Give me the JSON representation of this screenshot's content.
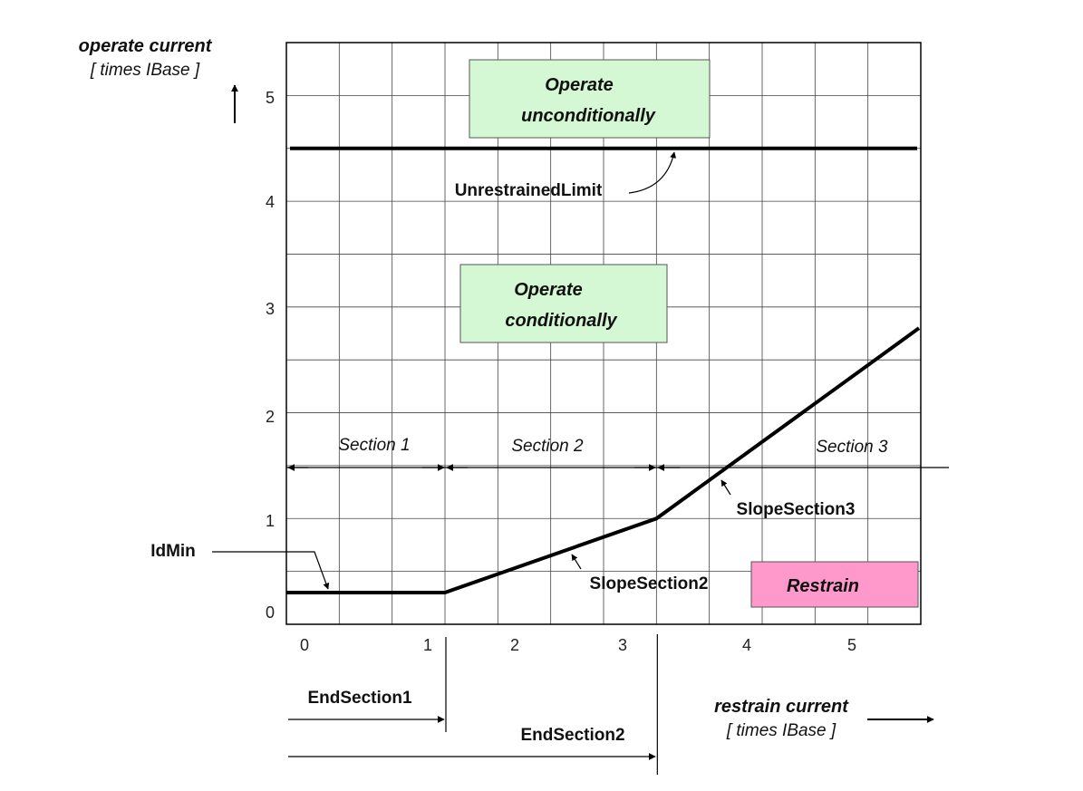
{
  "chart_data": {
    "type": "line",
    "ylabel": "operate current",
    "ylabel_unit": "[ times IBase ]",
    "xlabel": "restrain current",
    "xlabel_unit": "[ times IBase ]",
    "xlim": [
      0,
      6
    ],
    "ylim": [
      0,
      5.5
    ],
    "x_ticks": [
      "0",
      "1",
      "2",
      "3",
      "4",
      "5"
    ],
    "y_ticks": [
      "0",
      "1",
      "2",
      "3",
      "4",
      "5"
    ],
    "grid": true,
    "characteristic": {
      "x": [
        0,
        1.5,
        3.5,
        6
      ],
      "y": [
        0.3,
        0.3,
        1.0,
        2.8
      ]
    },
    "unrestrained_limit": 4.5,
    "end_section1": 1.5,
    "end_section2": 3.5,
    "sections": [
      "Section 1",
      "Section 2",
      "Section 3"
    ],
    "annotations": {
      "unrestrained": "UnrestrainedLimit",
      "idmin": "IdMin",
      "slope2": "SlopeSection2",
      "slope3": "SlopeSection3",
      "end1": "EndSection1",
      "end2": "EndSection2"
    },
    "regions": {
      "unconditional": [
        "Operate",
        "unconditionally"
      ],
      "conditional": [
        "Operate",
        "conditionally"
      ],
      "restrain": "Restrain"
    },
    "colors": {
      "unconditional": "#d4f7d4",
      "conditional": "#d4f7d4",
      "restrain": "#ff99cc",
      "line": "#000000",
      "grid": "#444444"
    }
  }
}
